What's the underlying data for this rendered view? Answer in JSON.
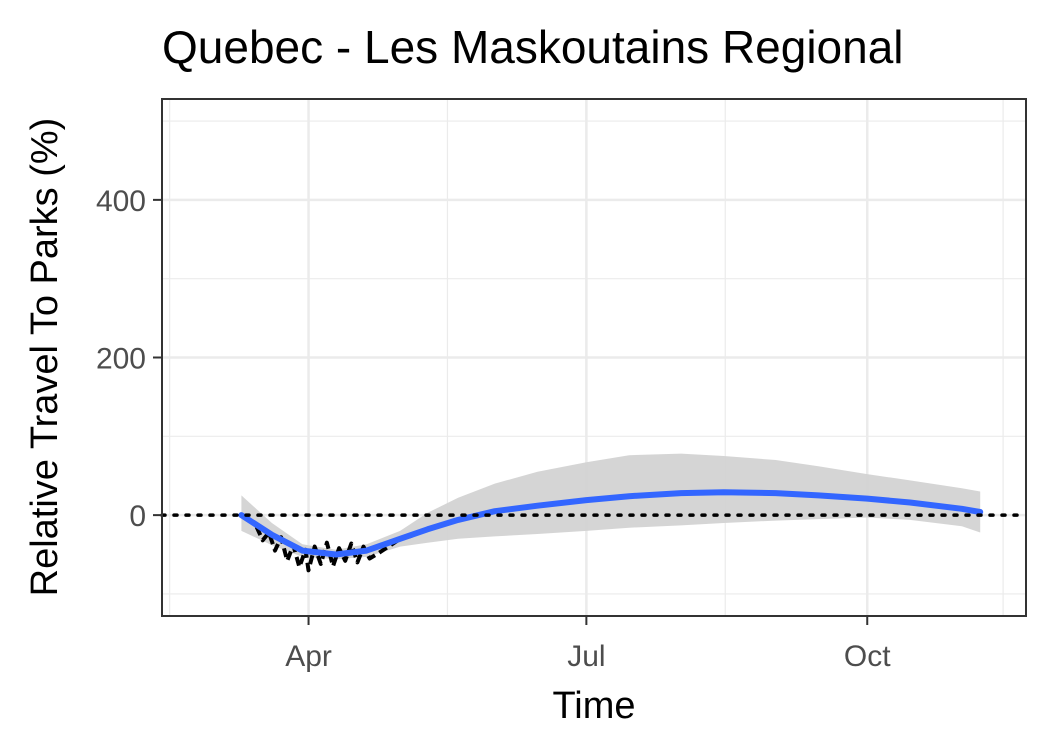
{
  "chart_data": {
    "type": "line",
    "title": "Quebec - Les Maskoutains Regional",
    "xlabel": "Time",
    "ylabel": "Relative Travel To Parks (%)",
    "x_ticks": [
      "Apr",
      "Jul",
      "Oct"
    ],
    "y_ticks": [
      0,
      200,
      400
    ],
    "x_range": [
      "2020-02-13",
      "2020-11-22"
    ],
    "ylim": [
      -128,
      528
    ],
    "grid": true,
    "reference_line": {
      "y": 0,
      "style": "dotted"
    },
    "colors": {
      "raw": "#000000",
      "smooth": "#3366ff",
      "ribbon": "#d3d3d3",
      "grid": "#ebebeb",
      "panel_border": "#333333"
    },
    "series": [
      {
        "role": "raw-data",
        "x": [
          "2020-03-15",
          "2020-03-17",
          "2020-03-19",
          "2020-03-21",
          "2020-03-23",
          "2020-03-25",
          "2020-03-27",
          "2020-03-29",
          "2020-03-31",
          "2020-04-01",
          "2020-04-03",
          "2020-04-05",
          "2020-04-07",
          "2020-04-09",
          "2020-04-11",
          "2020-04-13",
          "2020-04-15",
          "2020-04-17",
          "2020-04-19",
          "2020-04-21",
          "2020-04-24",
          "2020-05-01",
          "2020-05-06"
        ],
        "y": [
          -15,
          -32,
          -22,
          -45,
          -28,
          -58,
          -38,
          -66,
          -44,
          -70,
          -40,
          -62,
          -35,
          -65,
          -42,
          -58,
          -36,
          -60,
          -40,
          -55,
          -48,
          -30,
          -25
        ]
      },
      {
        "role": "smooth-trend",
        "x": [
          "2020-03-10",
          "2020-03-20",
          "2020-03-30",
          "2020-04-10",
          "2020-04-20",
          "2020-05-01",
          "2020-05-10",
          "2020-05-20",
          "2020-06-01",
          "2020-06-15",
          "2020-07-01",
          "2020-07-15",
          "2020-08-01",
          "2020-08-15",
          "2020-09-01",
          "2020-09-15",
          "2020-10-01",
          "2020-10-15",
          "2020-11-01",
          "2020-11-07"
        ],
        "y": [
          0,
          -25,
          -45,
          -50,
          -45,
          -30,
          -18,
          -6,
          5,
          12,
          19,
          24,
          28,
          29,
          28,
          25,
          21,
          16,
          8,
          4
        ],
        "ci_lower": [
          -20,
          -38,
          -53,
          -56,
          -53,
          -40,
          -35,
          -30,
          -27,
          -24,
          -20,
          -16,
          -13,
          -10,
          -7,
          -5,
          -3,
          -6,
          -14,
          -22
        ],
        "ci_upper": [
          25,
          -10,
          -37,
          -44,
          -37,
          -20,
          3,
          22,
          40,
          55,
          67,
          76,
          78,
          75,
          70,
          62,
          52,
          44,
          34,
          30
        ]
      }
    ]
  }
}
